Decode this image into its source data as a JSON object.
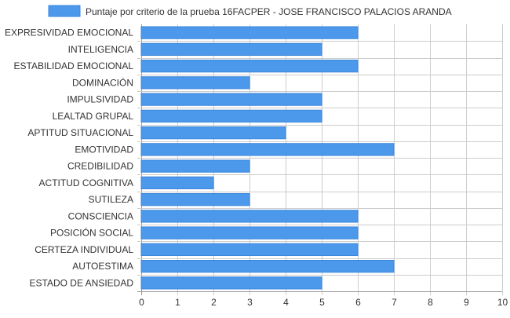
{
  "chart_data": {
    "type": "bar",
    "orientation": "horizontal",
    "legend": {
      "label": "Puntaje por criterio de la prueba 16FACPER - JOSE FRANCISCO PALACIOS ARANDA",
      "placement": "top-center"
    },
    "categories": [
      "EXPRESIVIDAD EMOCIONAL",
      "INTELIGENCIA",
      "ESTABILIDAD EMOCIONAL",
      "DOMINACIÓN",
      "IMPULSIVIDAD",
      "LEALTAD GRUPAL",
      "APTITUD SITUACIONAL",
      "EMOTIVIDAD",
      "CREDIBILIDAD",
      "ACTITUD COGNITIVA",
      "SUTILEZA",
      "CONSCIENCIA",
      "POSICIÓN SOCIAL",
      "CERTEZA INDIVIDUAL",
      "AUTOESTIMA",
      "ESTADO DE ANSIEDAD"
    ],
    "series": [
      {
        "name": "Puntaje por criterio de la prueba 16FACPER - JOSE FRANCISCO PALACIOS ARANDA",
        "values": [
          6,
          5,
          6,
          3,
          5,
          5,
          4,
          7,
          3,
          2,
          3,
          6,
          6,
          6,
          7,
          5
        ]
      }
    ],
    "xlim": [
      0,
      10
    ],
    "xticks": [
      "0",
      "1",
      "2",
      "3",
      "4",
      "5",
      "6",
      "7",
      "8",
      "9",
      "10"
    ],
    "grid": true,
    "colors": {
      "bar_fill": "#4c99eb",
      "bar_stroke": "#3b86dc",
      "grid": "#cccccc",
      "axis": "#999999",
      "text": "#333333"
    }
  }
}
